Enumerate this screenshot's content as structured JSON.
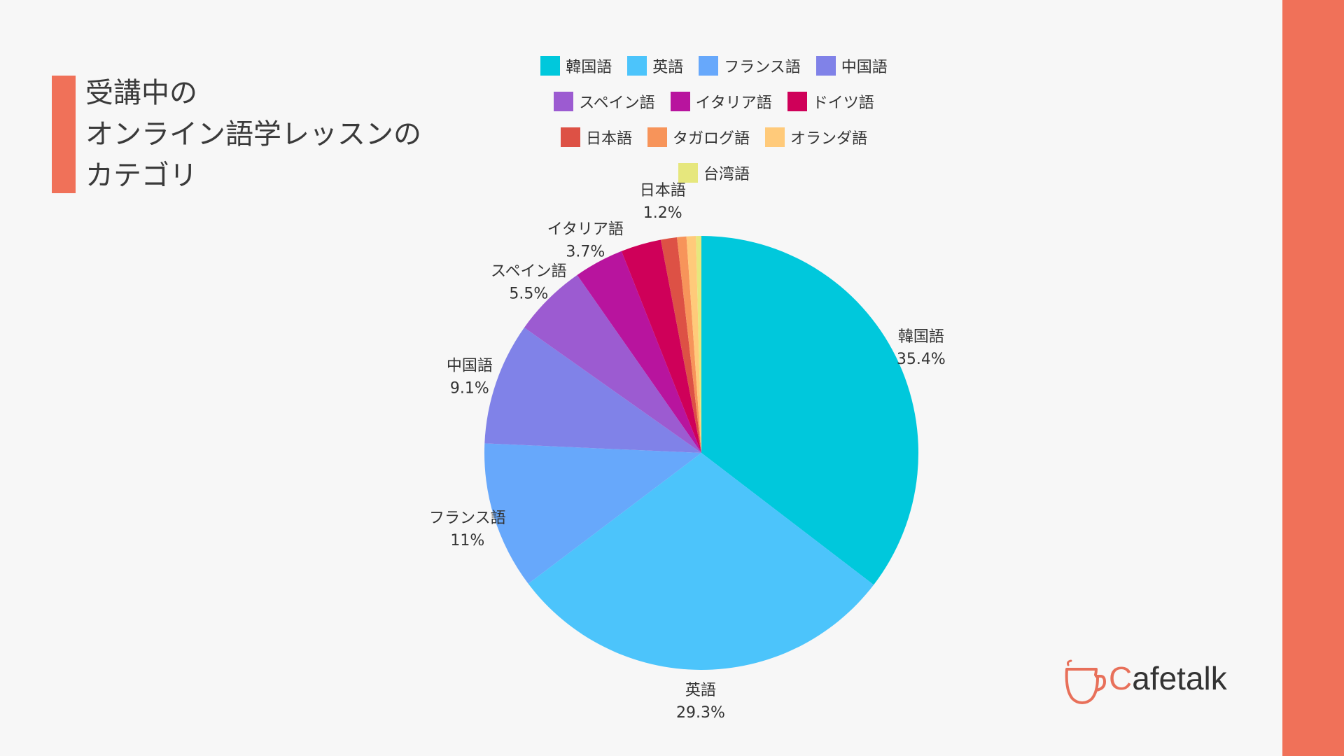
{
  "page": {
    "title_lines": [
      "受講中の",
      "オンライン語学レッスンの",
      "カテゴリ"
    ],
    "accent_color": "#f07159"
  },
  "brand": {
    "logo_first": "C",
    "logo_rest": "afetalk",
    "icon": "coffee-cup-icon"
  },
  "chart_data": {
    "type": "pie",
    "title": "受講中のオンライン語学レッスンのカテゴリ",
    "legend_position": "top",
    "start": "12 o'clock, clockwise",
    "slices": [
      {
        "label": "韓国語",
        "value": 35.4,
        "display": "35.4%",
        "color": "#00c8dc",
        "show_label": true
      },
      {
        "label": "英語",
        "value": 29.3,
        "display": "29.3%",
        "color": "#4cc4fb",
        "show_label": true
      },
      {
        "label": "フランス語",
        "value": 11.0,
        "display": "11%",
        "color": "#67a8fb",
        "show_label": true
      },
      {
        "label": "中国語",
        "value": 9.1,
        "display": "9.1%",
        "color": "#8082e8",
        "show_label": true
      },
      {
        "label": "スペイン語",
        "value": 5.5,
        "display": "5.5%",
        "color": "#9c5bd1",
        "show_label": true
      },
      {
        "label": "イタリア語",
        "value": 3.7,
        "display": "3.7%",
        "color": "#b8149e",
        "show_label": true
      },
      {
        "label": "ドイツ語",
        "value": 3.0,
        "display": "",
        "color": "#cf0059",
        "show_label": false
      },
      {
        "label": "日本語",
        "value": 1.2,
        "display": "1.2%",
        "color": "#dd5145",
        "show_label": true
      },
      {
        "label": "タガログ語",
        "value": 0.7,
        "display": "",
        "color": "#f7945a",
        "show_label": false
      },
      {
        "label": "オランダ語",
        "value": 0.7,
        "display": "",
        "color": "#ffca7a",
        "show_label": false
      },
      {
        "label": "台湾語",
        "value": 0.4,
        "display": "",
        "color": "#e6e77d",
        "show_label": false
      }
    ],
    "legend_rows": [
      [
        0,
        1,
        2,
        3
      ],
      [
        4,
        5,
        6
      ],
      [
        7,
        8,
        9
      ],
      [
        10
      ]
    ]
  }
}
